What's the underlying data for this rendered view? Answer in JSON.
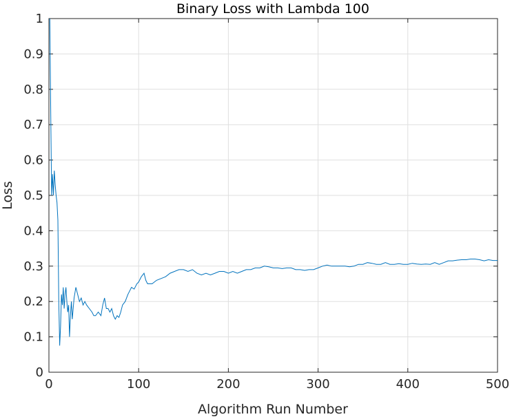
{
  "chart_data": {
    "type": "line",
    "title": "Binary Loss with Lambda 100",
    "xlabel": "Algorithm Run Number",
    "ylabel": "Loss",
    "xlim": [
      0,
      500
    ],
    "ylim": [
      0,
      1
    ],
    "xticks": [
      "0",
      "100",
      "200",
      "300",
      "400",
      "500"
    ],
    "yticks": [
      "0",
      "0.1",
      "0.2",
      "0.3",
      "0.4",
      "0.5",
      "0.6",
      "0.7",
      "0.8",
      "0.9",
      "1"
    ],
    "grid": true,
    "line_color": "#0072BD",
    "series": [
      {
        "x": [
          1,
          2,
          3,
          4,
          5,
          6,
          7,
          8,
          9,
          10,
          11,
          12,
          13,
          14,
          15,
          16,
          17,
          18,
          19,
          20,
          21,
          22,
          23,
          24,
          25,
          26,
          27,
          28,
          30,
          32,
          34,
          36,
          38,
          40,
          42,
          45,
          48,
          50,
          52,
          55,
          58,
          60,
          62,
          64,
          66,
          68,
          70,
          72,
          74,
          76,
          78,
          80,
          82,
          85,
          88,
          90,
          92,
          95,
          98,
          100,
          103,
          106,
          108,
          110,
          115,
          120,
          125,
          130,
          135,
          140,
          145,
          150,
          155,
          160,
          165,
          170,
          175,
          180,
          185,
          190,
          195,
          200,
          205,
          210,
          215,
          220,
          225,
          230,
          235,
          240,
          245,
          250,
          255,
          260,
          265,
          270,
          275,
          280,
          285,
          290,
          295,
          300,
          305,
          310,
          315,
          320,
          325,
          330,
          335,
          340,
          345,
          350,
          355,
          360,
          365,
          370,
          375,
          380,
          385,
          390,
          395,
          400,
          405,
          410,
          415,
          420,
          425,
          430,
          435,
          440,
          445,
          450,
          455,
          460,
          465,
          470,
          475,
          480,
          485,
          490,
          495,
          500
        ],
        "y": [
          1.0,
          0.74,
          0.5,
          0.56,
          0.5,
          0.57,
          0.53,
          0.5,
          0.48,
          0.43,
          0.2,
          0.075,
          0.13,
          0.22,
          0.19,
          0.24,
          0.18,
          0.22,
          0.24,
          0.2,
          0.17,
          0.19,
          0.1,
          0.16,
          0.2,
          0.15,
          0.18,
          0.21,
          0.24,
          0.22,
          0.2,
          0.21,
          0.19,
          0.2,
          0.19,
          0.18,
          0.17,
          0.16,
          0.16,
          0.17,
          0.16,
          0.19,
          0.21,
          0.18,
          0.18,
          0.17,
          0.18,
          0.16,
          0.15,
          0.16,
          0.155,
          0.17,
          0.19,
          0.2,
          0.22,
          0.23,
          0.24,
          0.235,
          0.25,
          0.255,
          0.27,
          0.28,
          0.26,
          0.25,
          0.25,
          0.26,
          0.265,
          0.27,
          0.28,
          0.285,
          0.29,
          0.29,
          0.285,
          0.29,
          0.28,
          0.275,
          0.28,
          0.275,
          0.28,
          0.285,
          0.285,
          0.28,
          0.285,
          0.28,
          0.285,
          0.29,
          0.29,
          0.295,
          0.295,
          0.3,
          0.298,
          0.295,
          0.295,
          0.293,
          0.295,
          0.295,
          0.29,
          0.29,
          0.288,
          0.29,
          0.29,
          0.295,
          0.3,
          0.303,
          0.3,
          0.3,
          0.3,
          0.3,
          0.298,
          0.3,
          0.305,
          0.305,
          0.31,
          0.308,
          0.305,
          0.305,
          0.31,
          0.305,
          0.305,
          0.307,
          0.305,
          0.305,
          0.308,
          0.306,
          0.305,
          0.306,
          0.305,
          0.31,
          0.305,
          0.31,
          0.315,
          0.315,
          0.317,
          0.318,
          0.318,
          0.32,
          0.32,
          0.318,
          0.315,
          0.318,
          0.316,
          0.316
        ]
      }
    ]
  }
}
